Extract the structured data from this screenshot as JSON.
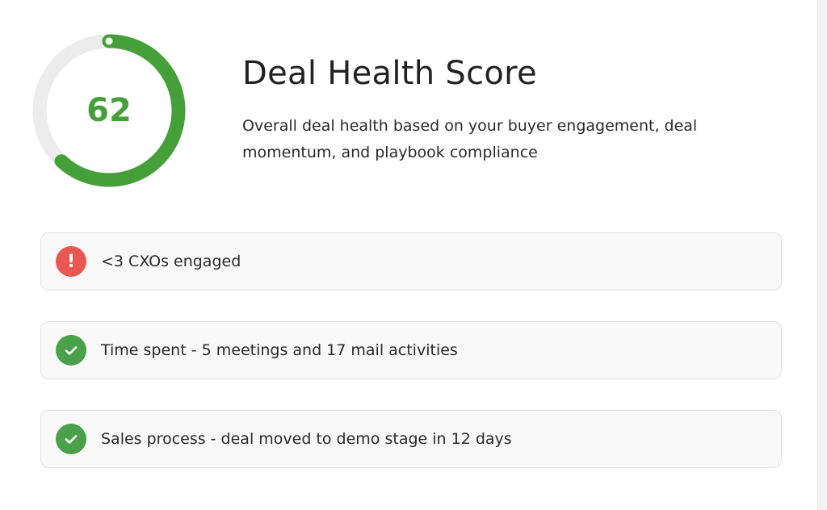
{
  "score": {
    "value": 62,
    "label": "62",
    "color": "#46a03a",
    "track_color": "#ececec"
  },
  "header": {
    "title": "Deal Health Score",
    "description": "Overall deal health based on your buyer engagement, deal momentum, and playbook compliance"
  },
  "items": [
    {
      "status": "warning",
      "icon": "exclamation-icon",
      "color": "#e85750",
      "text": "<3 CXOs engaged"
    },
    {
      "status": "ok",
      "icon": "check-icon",
      "color": "#4aa14a",
      "text": "Time spent - 5 meetings and 17 mail activities"
    },
    {
      "status": "ok",
      "icon": "check-icon",
      "color": "#4aa14a",
      "text": "Sales process - deal moved to demo stage in 12 days"
    }
  ]
}
